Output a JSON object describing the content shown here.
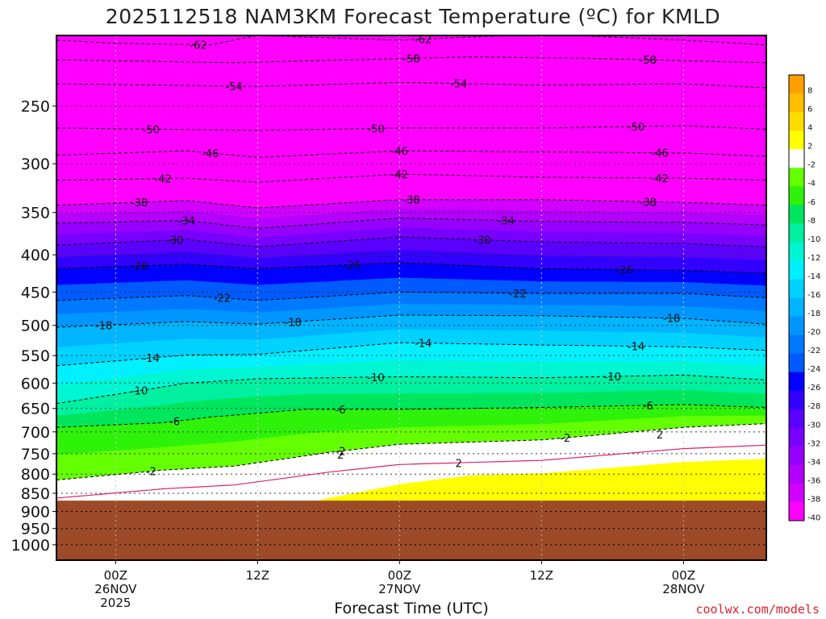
{
  "chart_data": {
    "type": "heatmap",
    "title": "2025112518 NAM3KM Forecast Temperature (ºC) for KMLD",
    "xlabel": "Forecast Time (UTC)",
    "ylabel": "",
    "y_scale": "log-pressure",
    "y_range_hpa": [
      200,
      1050
    ],
    "y_ticks": [
      250,
      300,
      350,
      400,
      450,
      500,
      550,
      600,
      650,
      700,
      750,
      800,
      850,
      900,
      950,
      1000
    ],
    "x_range_hours": [
      -5,
      55
    ],
    "x_ticks": [
      {
        "hour": 0,
        "lines": [
          "00Z",
          "26NOV",
          "2025"
        ]
      },
      {
        "hour": 12,
        "lines": [
          "12Z"
        ]
      },
      {
        "hour": 24,
        "lines": [
          "00Z",
          "27NOV"
        ]
      },
      {
        "hour": 36,
        "lines": [
          "12Z"
        ]
      },
      {
        "hour": 48,
        "lines": [
          "00Z",
          "28NOV"
        ]
      }
    ],
    "grid": true,
    "legend_position": "right",
    "colorbar": {
      "labels": [
        "8",
        "6",
        "4",
        "2",
        "-2",
        "-4",
        "-6",
        "-8",
        "-10",
        "-12",
        "-14",
        "-16",
        "-18",
        "-20",
        "-22",
        "-24",
        "-26",
        "-28",
        "-30",
        "-32",
        "-34",
        "-36",
        "-38",
        "-40"
      ],
      "colors": [
        "#ffa000",
        "#ffbe00",
        "#ffdc00",
        "#ffff00",
        "#ffffff",
        "#64ff00",
        "#2ef20a",
        "#00e65c",
        "#00f0a0",
        "#00f5d2",
        "#00f0ff",
        "#00d2ff",
        "#00b4ff",
        "#0096ff",
        "#0078ff",
        "#005aff",
        "#0000ff",
        "#3200ff",
        "#5a00ff",
        "#7800ff",
        "#9600ff",
        "#b400ff",
        "#d200ff",
        "#ff00ff"
      ]
    },
    "contours": [
      {
        "value": -62,
        "label": "-62",
        "points": [
          [
            -5,
            203
          ],
          [
            0,
            205
          ],
          [
            8,
            206
          ],
          [
            12,
            200
          ],
          [
            24,
            203
          ],
          [
            36,
            199
          ],
          [
            48,
            203
          ],
          [
            55,
            206
          ]
        ],
        "labels_at": [
          7,
          26
        ]
      },
      {
        "value": -58,
        "label": "-58",
        "points": [
          [
            -5,
            216
          ],
          [
            10,
            218
          ],
          [
            20,
            216
          ],
          [
            30,
            214
          ],
          [
            40,
            215
          ],
          [
            55,
            218
          ]
        ],
        "labels_at": [
          25,
          45
        ]
      },
      {
        "value": -54,
        "label": "-54",
        "points": [
          [
            -5,
            233
          ],
          [
            12,
            235
          ],
          [
            24,
            232
          ],
          [
            36,
            234
          ],
          [
            48,
            233
          ],
          [
            55,
            236
          ]
        ],
        "labels_at": [
          10,
          29
        ]
      },
      {
        "value": -50,
        "label": "-50",
        "points": [
          [
            -5,
            268
          ],
          [
            12,
            270
          ],
          [
            24,
            268
          ],
          [
            36,
            268
          ],
          [
            48,
            266
          ],
          [
            55,
            269
          ]
        ],
        "labels_at": [
          3,
          22,
          44
        ]
      },
      {
        "value": -46,
        "label": "-46",
        "points": [
          [
            -5,
            292
          ],
          [
            6,
            288
          ],
          [
            12,
            294
          ],
          [
            24,
            288
          ],
          [
            36,
            289
          ],
          [
            48,
            290
          ],
          [
            55,
            293
          ]
        ],
        "labels_at": [
          8,
          24,
          46
        ]
      },
      {
        "value": -42,
        "label": "-42",
        "points": [
          [
            -5,
            316
          ],
          [
            6,
            314
          ],
          [
            12,
            318
          ],
          [
            24,
            310
          ],
          [
            36,
            313
          ],
          [
            48,
            314
          ],
          [
            55,
            316
          ]
        ],
        "labels_at": [
          4,
          24,
          46
        ]
      },
      {
        "value": -38,
        "label": "-38",
        "points": [
          [
            -5,
            342
          ],
          [
            6,
            337
          ],
          [
            12,
            345
          ],
          [
            24,
            336
          ],
          [
            36,
            336
          ],
          [
            48,
            339
          ],
          [
            55,
            342
          ]
        ],
        "labels_at": [
          2,
          25,
          45
        ]
      },
      {
        "value": -34,
        "label": "-34",
        "points": [
          [
            -5,
            362
          ],
          [
            6,
            359
          ],
          [
            12,
            368
          ],
          [
            24,
            356
          ],
          [
            36,
            360
          ],
          [
            48,
            361
          ],
          [
            55,
            364
          ]
        ],
        "labels_at": [
          6,
          33
        ]
      },
      {
        "value": -30,
        "label": "-30",
        "points": [
          [
            -5,
            388
          ],
          [
            6,
            381
          ],
          [
            12,
            390
          ],
          [
            24,
            378
          ],
          [
            36,
            384
          ],
          [
            48,
            386
          ],
          [
            55,
            390
          ]
        ],
        "labels_at": [
          5,
          31
        ]
      },
      {
        "value": -26,
        "label": "-26",
        "points": [
          [
            -5,
            418
          ],
          [
            6,
            412
          ],
          [
            12,
            418
          ],
          [
            24,
            410
          ],
          [
            36,
            418
          ],
          [
            48,
            420
          ],
          [
            55,
            424
          ]
        ],
        "labels_at": [
          2,
          20,
          43
        ]
      },
      {
        "value": -22,
        "label": "-22",
        "points": [
          [
            -5,
            462
          ],
          [
            6,
            455
          ],
          [
            12,
            462
          ],
          [
            24,
            450
          ],
          [
            36,
            452
          ],
          [
            48,
            452
          ],
          [
            55,
            458
          ]
        ],
        "labels_at": [
          9,
          34
        ]
      },
      {
        "value": -18,
        "label": "-18",
        "points": [
          [
            -5,
            503
          ],
          [
            6,
            494
          ],
          [
            12,
            498
          ],
          [
            24,
            484
          ],
          [
            36,
            485
          ],
          [
            48,
            489
          ],
          [
            55,
            498
          ]
        ],
        "labels_at": [
          -1,
          15,
          47
        ]
      },
      {
        "value": -14,
        "label": "-14",
        "points": [
          [
            -5,
            568
          ],
          [
            6,
            549
          ],
          [
            12,
            548
          ],
          [
            24,
            528
          ],
          [
            36,
            532
          ],
          [
            48,
            535
          ],
          [
            55,
            541
          ]
        ],
        "labels_at": [
          3,
          26,
          44
        ]
      },
      {
        "value": -10,
        "label": "-10",
        "points": [
          [
            -5,
            640
          ],
          [
            6,
            600
          ],
          [
            12,
            592
          ],
          [
            24,
            588
          ],
          [
            36,
            590
          ],
          [
            48,
            585
          ],
          [
            55,
            594
          ]
        ],
        "labels_at": [
          2,
          22,
          42
        ]
      },
      {
        "value": -6,
        "label": "-6",
        "points": [
          [
            -5,
            690
          ],
          [
            4,
            680
          ],
          [
            8,
            668
          ],
          [
            16,
            652
          ],
          [
            24,
            652
          ],
          [
            36,
            648
          ],
          [
            48,
            642
          ],
          [
            55,
            648
          ]
        ],
        "labels_at": [
          5,
          19,
          45
        ]
      },
      {
        "value": -2,
        "label": "-2",
        "points": [
          [
            -5,
            815
          ],
          [
            4,
            790
          ],
          [
            10,
            780
          ],
          [
            18,
            747
          ],
          [
            24,
            728
          ],
          [
            36,
            718
          ],
          [
            48,
            690
          ],
          [
            55,
            682
          ]
        ],
        "labels_at": [
          3,
          19,
          38
        ]
      }
    ],
    "annotations": [
      "2",
      "2",
      "2"
    ]
  },
  "credit": "coolwx.com/models"
}
